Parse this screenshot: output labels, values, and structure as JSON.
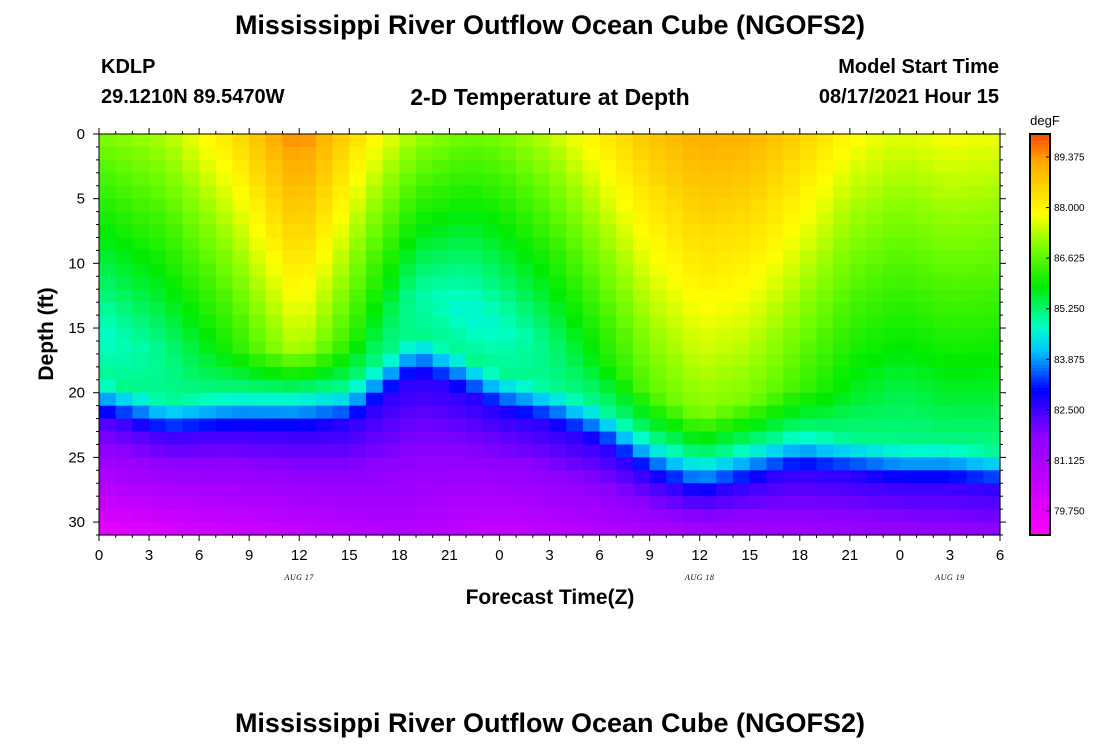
{
  "header": {
    "title": "Mississippi River Outflow Ocean Cube (NGOFS2)",
    "station": "KDLP",
    "coords": "29.1210N  89.5470W",
    "subtitle": "2-D Temperature at Depth",
    "start_label": "Model Start Time",
    "start_value": "08/17/2021 Hour 15"
  },
  "footer": {
    "title": "Mississippi River Outflow Ocean Cube (NGOFS2)"
  },
  "chart_data": {
    "type": "heatmap",
    "title": "2-D Temperature at Depth",
    "xlabel": "Forecast Time(Z)",
    "ylabel": "Depth (ft)",
    "x_range_hours": [
      0,
      54
    ],
    "y_range_ft": [
      0,
      31
    ],
    "x_ticks": [
      {
        "h": 0,
        "label": "0"
      },
      {
        "h": 3,
        "label": "3"
      },
      {
        "h": 6,
        "label": "6"
      },
      {
        "h": 9,
        "label": "9"
      },
      {
        "h": 12,
        "label": "12"
      },
      {
        "h": 15,
        "label": "15"
      },
      {
        "h": 18,
        "label": "18"
      },
      {
        "h": 21,
        "label": "21"
      },
      {
        "h": 24,
        "label": "0"
      },
      {
        "h": 27,
        "label": "3"
      },
      {
        "h": 30,
        "label": "6"
      },
      {
        "h": 33,
        "label": "9"
      },
      {
        "h": 36,
        "label": "12"
      },
      {
        "h": 39,
        "label": "15"
      },
      {
        "h": 42,
        "label": "18"
      },
      {
        "h": 45,
        "label": "21"
      },
      {
        "h": 48,
        "label": "0"
      },
      {
        "h": 51,
        "label": "3"
      },
      {
        "h": 54,
        "label": "6"
      }
    ],
    "date_labels": [
      {
        "h": 12,
        "label": "AUG 17"
      },
      {
        "h": 36,
        "label": "AUG 18"
      },
      {
        "h": 51,
        "label": "AUG 19"
      }
    ],
    "y_ticks": [
      {
        "v": 0,
        "label": "0"
      },
      {
        "v": 5,
        "label": "5"
      },
      {
        "v": 10,
        "label": "10"
      },
      {
        "v": 15,
        "label": "15"
      },
      {
        "v": 20,
        "label": "20"
      },
      {
        "v": 25,
        "label": "25"
      },
      {
        "v": 30,
        "label": "30"
      }
    ],
    "colorbar": {
      "unit": "degF",
      "min": 79.1,
      "max": 90.0,
      "ticks": [
        "89.375",
        "88.000",
        "86.625",
        "85.250",
        "83.875",
        "82.500",
        "81.125",
        "79.750"
      ]
    },
    "model": {
      "time_step_hours": 1,
      "depth_step_ft": 1,
      "thermocline_depth_keypoints": [
        [
          0,
          20.5
        ],
        [
          4,
          22
        ],
        [
          8,
          21.5
        ],
        [
          12,
          21.5
        ],
        [
          15,
          21
        ],
        [
          17,
          19
        ],
        [
          19,
          17
        ],
        [
          21,
          18
        ],
        [
          24,
          20
        ],
        [
          27,
          21
        ],
        [
          30,
          22.5
        ],
        [
          33,
          25
        ],
        [
          36,
          26.5
        ],
        [
          39,
          25.5
        ],
        [
          42,
          24.5
        ],
        [
          45,
          25
        ],
        [
          48,
          25.5
        ],
        [
          51,
          25.5
        ],
        [
          54,
          26
        ]
      ],
      "surface_temperature_keypoints": [
        [
          0,
          86.9
        ],
        [
          4,
          87.3
        ],
        [
          8,
          88.3
        ],
        [
          10,
          89.0
        ],
        [
          12,
          89.6
        ],
        [
          14,
          88.9
        ],
        [
          16,
          88.1
        ],
        [
          19,
          87.2
        ],
        [
          22,
          86.8
        ],
        [
          24,
          86.9
        ],
        [
          27,
          87.4
        ],
        [
          30,
          88.1
        ],
        [
          33,
          88.8
        ],
        [
          36,
          89.2
        ],
        [
          39,
          89.1
        ],
        [
          42,
          88.6
        ],
        [
          45,
          87.9
        ],
        [
          48,
          87.6
        ],
        [
          51,
          87.8
        ],
        [
          54,
          87.7
        ]
      ],
      "bottom_temperature_keypoints": [
        [
          0,
          79.6
        ],
        [
          18,
          80.9
        ],
        [
          24,
          80.4
        ],
        [
          36,
          81.2
        ],
        [
          54,
          81.7
        ]
      ],
      "deep_layer_temperature_keypoints": [
        [
          0,
          82.4
        ],
        [
          18,
          82.7
        ],
        [
          54,
          82.6
        ]
      ],
      "layer_top_temperature": 85.1,
      "mixed_layer_drop": 2.2
    }
  }
}
